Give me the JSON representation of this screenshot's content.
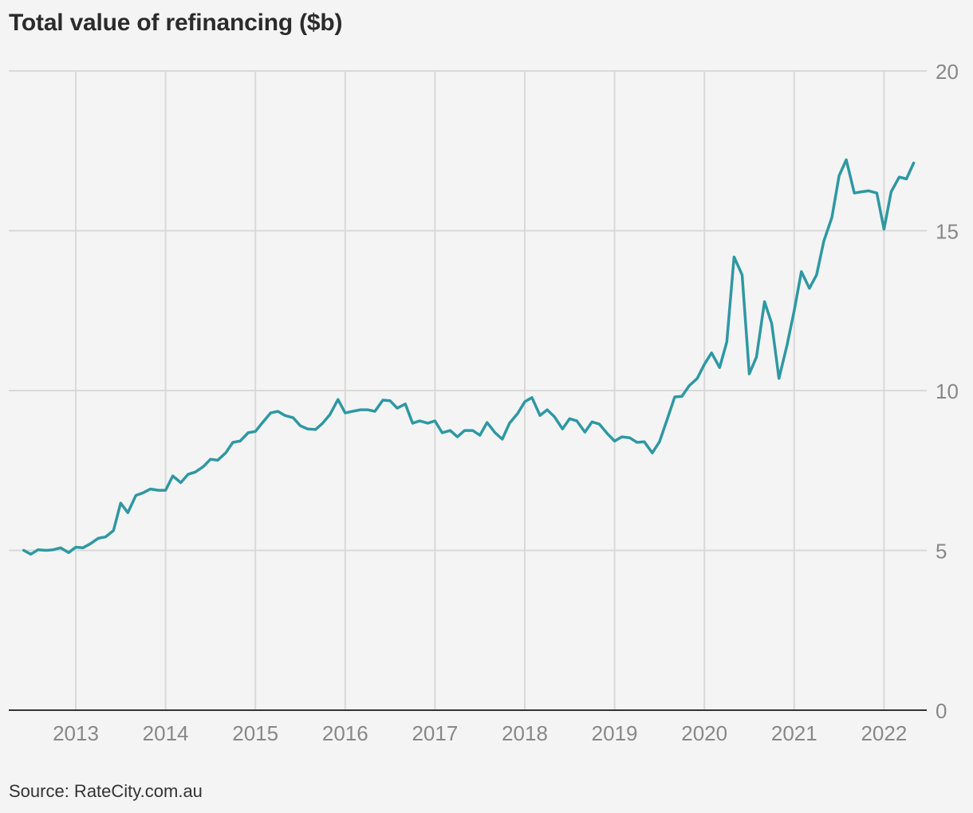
{
  "title": "Total value of refinancing ($b)",
  "source": "Source: RateCity.com.au",
  "colors": {
    "line": "#2e98a3",
    "grid": "#d9d9d9",
    "baseline": "#333333",
    "tick": "#888888",
    "background": "#f4f4f4"
  },
  "chart_data": {
    "type": "line",
    "title": "Total value of refinancing ($b)",
    "xlabel": "",
    "ylabel": "",
    "xlim": [
      2012.4,
      2022.4
    ],
    "ylim": [
      0,
      20
    ],
    "grid": true,
    "y_axis_position": "right",
    "x_ticks": [
      "2013",
      "2014",
      "2015",
      "2016",
      "2017",
      "2018",
      "2019",
      "2020",
      "2021",
      "2022"
    ],
    "y_ticks": [
      0,
      5,
      10,
      15,
      20
    ],
    "series": [
      {
        "name": "",
        "x": [
          2012.42,
          2012.5,
          2012.58,
          2012.67,
          2012.75,
          2012.83,
          2012.92,
          2013.0,
          2013.08,
          2013.17,
          2013.25,
          2013.33,
          2013.42,
          2013.5,
          2013.58,
          2013.67,
          2013.75,
          2013.83,
          2013.92,
          2014.0,
          2014.08,
          2014.17,
          2014.25,
          2014.33,
          2014.42,
          2014.5,
          2014.58,
          2014.67,
          2014.75,
          2014.83,
          2014.92,
          2015.0,
          2015.08,
          2015.17,
          2015.25,
          2015.33,
          2015.42,
          2015.5,
          2015.58,
          2015.67,
          2015.75,
          2015.83,
          2015.92,
          2016.0,
          2016.08,
          2016.17,
          2016.25,
          2016.33,
          2016.42,
          2016.5,
          2016.58,
          2016.67,
          2016.75,
          2016.83,
          2016.92,
          2017.0,
          2017.08,
          2017.17,
          2017.25,
          2017.33,
          2017.42,
          2017.5,
          2017.58,
          2017.67,
          2017.75,
          2017.83,
          2017.92,
          2018.0,
          2018.08,
          2018.17,
          2018.25,
          2018.33,
          2018.42,
          2018.5,
          2018.58,
          2018.67,
          2018.75,
          2018.83,
          2018.92,
          2019.0,
          2019.08,
          2019.17,
          2019.25,
          2019.33,
          2019.42,
          2019.5,
          2019.58,
          2019.67,
          2019.75,
          2019.83,
          2019.92,
          2020.0,
          2020.08,
          2020.17,
          2020.25,
          2020.33,
          2020.42,
          2020.5,
          2020.58,
          2020.67,
          2020.75,
          2020.83,
          2020.92,
          2021.0,
          2021.08,
          2021.17,
          2021.25,
          2021.33,
          2021.42,
          2021.5,
          2021.58,
          2021.67,
          2021.75,
          2021.83,
          2021.92,
          2022.0,
          2022.08,
          2022.17,
          2022.25,
          2022.33
        ],
        "values": [
          5.0,
          4.88,
          5.02,
          5.0,
          5.02,
          5.08,
          4.93,
          5.1,
          5.08,
          5.22,
          5.38,
          5.42,
          5.62,
          6.48,
          6.18,
          6.72,
          6.8,
          6.92,
          6.88,
          6.88,
          7.33,
          7.12,
          7.38,
          7.45,
          7.62,
          7.85,
          7.82,
          8.05,
          8.38,
          8.42,
          8.68,
          8.72,
          9.0,
          9.3,
          9.35,
          9.22,
          9.15,
          8.9,
          8.8,
          8.78,
          8.98,
          9.25,
          9.72,
          9.3,
          9.35,
          9.4,
          9.4,
          9.35,
          9.7,
          9.68,
          9.45,
          9.58,
          8.98,
          9.05,
          8.98,
          9.05,
          8.68,
          8.75,
          8.55,
          8.75,
          8.75,
          8.6,
          9.0,
          8.68,
          8.48,
          8.98,
          9.28,
          9.65,
          9.78,
          9.22,
          9.4,
          9.18,
          8.8,
          9.12,
          9.05,
          8.7,
          9.02,
          8.95,
          8.65,
          8.42,
          8.55,
          8.52,
          8.38,
          8.4,
          8.05,
          8.4,
          9.05,
          9.8,
          9.82,
          10.15,
          10.38,
          10.82,
          11.18,
          10.72,
          11.52,
          14.18,
          13.62,
          10.52,
          11.05,
          12.78,
          12.1,
          10.38,
          11.42,
          12.5,
          13.72,
          13.2,
          13.62,
          14.68,
          15.42,
          16.72,
          17.22,
          16.18,
          16.22,
          16.25,
          16.18,
          15.05,
          16.22,
          16.68,
          16.62,
          17.12
        ]
      }
    ]
  }
}
